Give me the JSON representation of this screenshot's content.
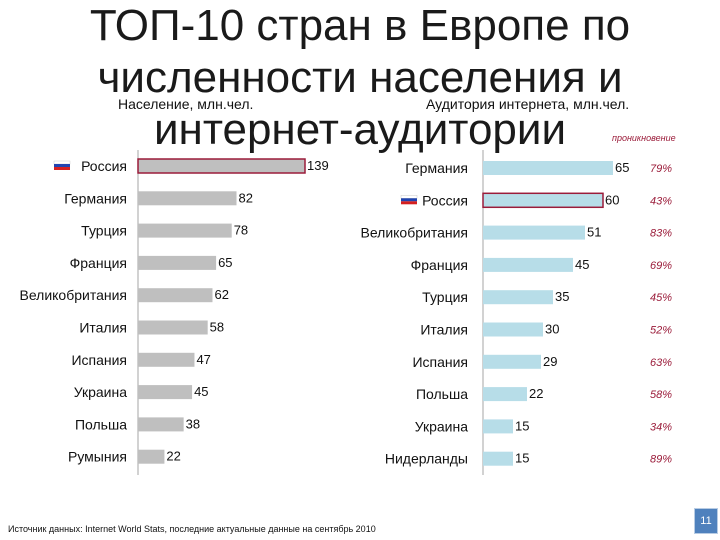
{
  "title": "ТОП-10 стран в Европе по численности населения и интернет-аудитории",
  "source": "Источник данных: Internet World Stats, последние актуальные данные на сентябрь 2010",
  "page_number": "11",
  "colors": {
    "left_bar": "#bfbfbf",
    "right_bar": "#b7dde8",
    "highlight_border": "#9b1c3a",
    "axis": "#a6a6a6",
    "penetration_text": "#9b1c3a"
  },
  "chart_data": [
    {
      "type": "bar",
      "orientation": "horizontal",
      "subtitle": "Население, млн.чел.",
      "categories": [
        "Россия",
        "Германия",
        "Турция",
        "Франция",
        "Великобритания",
        "Италия",
        "Испания",
        "Украина",
        "Польша",
        "Румыния"
      ],
      "values": [
        139,
        82,
        78,
        65,
        62,
        58,
        47,
        45,
        38,
        22
      ],
      "highlight": "Россия",
      "flag_icon": "russia-flag-icon"
    },
    {
      "type": "bar",
      "orientation": "horizontal",
      "subtitle": "Аудитория интернета, млн.чел.",
      "penetration_header": "проникновение",
      "categories": [
        "Германия",
        "Россия",
        "Великобритания",
        "Франция",
        "Турция",
        "Италия",
        "Испания",
        "Польша",
        "Украина",
        "Нидерланды"
      ],
      "values": [
        65,
        60,
        51,
        45,
        35,
        30,
        29,
        22,
        15,
        15
      ],
      "penetration": [
        "79%",
        "43%",
        "83%",
        "69%",
        "45%",
        "52%",
        "63%",
        "58%",
        "34%",
        "89%"
      ],
      "highlight": "Россия",
      "flag_icon": "russia-flag-icon"
    }
  ]
}
